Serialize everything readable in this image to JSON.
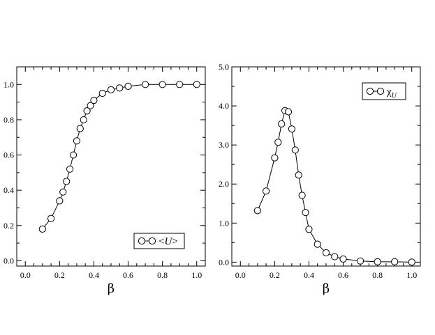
{
  "chart_data": [
    {
      "type": "line",
      "title": "",
      "xlabel": "β",
      "ylabel": "",
      "xlim": [
        -0.05,
        1.05
      ],
      "ylim": [
        -0.03,
        1.1
      ],
      "xticks": [
        0.0,
        0.2,
        0.4,
        0.6,
        0.8,
        1.0
      ],
      "xtick_labels": [
        "0.0",
        "0.2",
        "0.4",
        "0.6",
        "0.8",
        "1.0"
      ],
      "yticks": [
        0.0,
        0.2,
        0.4,
        0.6,
        0.8,
        1.0
      ],
      "ytick_labels": [
        "0.0",
        "0.2",
        "0.4",
        "0.6",
        "0.8",
        "1.0"
      ],
      "grid": false,
      "legend_position": "bottom-right",
      "series": [
        {
          "legend_prefix": "<",
          "legend_symbol": "U",
          "legend_suffix": ">",
          "marker": "open-circle",
          "x": [
            0.1,
            0.15,
            0.2,
            0.22,
            0.24,
            0.26,
            0.28,
            0.3,
            0.32,
            0.34,
            0.36,
            0.38,
            0.4,
            0.45,
            0.5,
            0.55,
            0.6,
            0.7,
            0.8,
            0.9,
            1.0
          ],
          "y": [
            0.18,
            0.24,
            0.34,
            0.39,
            0.45,
            0.52,
            0.6,
            0.68,
            0.75,
            0.8,
            0.85,
            0.88,
            0.91,
            0.95,
            0.97,
            0.98,
            0.99,
            1.0,
            1.0,
            1.0,
            1.0
          ]
        }
      ]
    },
    {
      "type": "line",
      "title": "",
      "xlabel": "β",
      "ylabel": "",
      "xlim": [
        -0.05,
        1.05
      ],
      "ylim": [
        -0.1,
        5.0
      ],
      "xticks": [
        0.0,
        0.2,
        0.4,
        0.6,
        0.8,
        1.0
      ],
      "xtick_labels": [
        "0.0",
        "0.2",
        "0.4",
        "0.6",
        "0.8",
        "1.0"
      ],
      "yticks": [
        0.0,
        1.0,
        2.0,
        3.0,
        4.0,
        5.0
      ],
      "ytick_labels": [
        "0.0",
        "1.0",
        "2.0",
        "3.0",
        "4.0",
        "5.0"
      ],
      "grid": false,
      "legend_position": "top-right",
      "series": [
        {
          "legend_symbol": "χ",
          "legend_subscript": "U",
          "marker": "open-circle",
          "x": [
            0.1,
            0.15,
            0.2,
            0.22,
            0.24,
            0.26,
            0.28,
            0.3,
            0.32,
            0.34,
            0.36,
            0.38,
            0.4,
            0.45,
            0.5,
            0.55,
            0.6,
            0.7,
            0.8,
            0.9,
            1.0
          ],
          "y": [
            1.32,
            1.82,
            2.67,
            3.07,
            3.54,
            3.88,
            3.85,
            3.41,
            2.87,
            2.23,
            1.71,
            1.27,
            0.84,
            0.46,
            0.24,
            0.14,
            0.08,
            0.03,
            0.01,
            0.01,
            0.0
          ]
        }
      ]
    }
  ]
}
